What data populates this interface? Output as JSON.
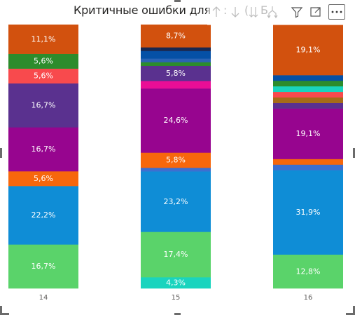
{
  "visual": {
    "title": "Критичные ошибки для",
    "title_fragments": [
      "↑",
      ":",
      "↓",
      "(",
      "↓↓",
      "Б",
      "⇊"
    ],
    "toolbar": {
      "sort_asc_icon": "arrow-up-icon",
      "sort_desc_icon": "arrow-down-icon",
      "drill_down_icon": "double-arrow-down-icon",
      "expand_icon": "fork-arrow-down-icon",
      "filter_icon": "funnel-icon",
      "focus_icon": "focus-mode-icon",
      "more_icon": "ellipsis-icon"
    }
  },
  "chart_data": {
    "type": "bar",
    "stacked": "100%",
    "title": "Критичные ошибки для",
    "categories": [
      "14",
      "15",
      "16"
    ],
    "ylim": [
      0,
      100
    ],
    "gridlines": false,
    "legend": "none",
    "columns": [
      {
        "category": "14",
        "segments": [
          {
            "value": 16.7,
            "color": "#5ad36a",
            "label": "16,7%"
          },
          {
            "value": 22.2,
            "color": "#0f8dd6",
            "label": "22,2%"
          },
          {
            "value": 5.6,
            "color": "#f7670c",
            "label": "5,6%"
          },
          {
            "value": 16.7,
            "color": "#97058f",
            "label": "16,7%"
          },
          {
            "value": 16.7,
            "color": "#5a318f",
            "label": "16,7%"
          },
          {
            "value": 5.6,
            "color": "#f84a4d",
            "label": "5,6%"
          },
          {
            "value": 5.6,
            "color": "#2c8c2c",
            "label": "5,6%"
          },
          {
            "value": 11.1,
            "color": "#d2510e",
            "label": "11,1%"
          }
        ]
      },
      {
        "category": "15",
        "segments": [
          {
            "value": 4.3,
            "color": "#19d4be",
            "label": "4,3%"
          },
          {
            "value": 17.4,
            "color": "#5ad36a",
            "label": "17,4%"
          },
          {
            "value": 23.2,
            "color": "#0f8dd6",
            "label": "23,2%"
          },
          {
            "value": 1.4,
            "color": "#3d6fd0",
            "label": ""
          },
          {
            "value": 5.8,
            "color": "#f7670c",
            "label": "5,8%"
          },
          {
            "value": 24.6,
            "color": "#97058f",
            "label": "24,6%"
          },
          {
            "value": 2.9,
            "color": "#ea0e96",
            "label": ""
          },
          {
            "value": 5.8,
            "color": "#5a318f",
            "label": "5,8%"
          },
          {
            "value": 1.4,
            "color": "#2c8c2c",
            "label": ""
          },
          {
            "value": 1.4,
            "color": "#2b63b4",
            "label": ""
          },
          {
            "value": 2.9,
            "color": "#0550a6",
            "label": ""
          },
          {
            "value": 1.4,
            "color": "#1a2850",
            "label": ""
          },
          {
            "value": 8.7,
            "color": "#d2510e",
            "label": "8,7%"
          }
        ]
      },
      {
        "category": "16",
        "segments": [
          {
            "value": 12.8,
            "color": "#5ad36a",
            "label": "12,8%"
          },
          {
            "value": 31.9,
            "color": "#0f8dd6",
            "label": "31,9%"
          },
          {
            "value": 2.1,
            "color": "#3d6fd0",
            "label": ""
          },
          {
            "value": 2.1,
            "color": "#f7670c",
            "label": ""
          },
          {
            "value": 19.1,
            "color": "#97058f",
            "label": "19,1%"
          },
          {
            "value": 2.1,
            "color": "#5a318f",
            "label": ""
          },
          {
            "value": 2.1,
            "color": "#a66c16",
            "label": ""
          },
          {
            "value": 2.1,
            "color": "#f84a4d",
            "label": ""
          },
          {
            "value": 2.1,
            "color": "#19d4be",
            "label": ""
          },
          {
            "value": 2.1,
            "color": "#2c8c2c",
            "label": ""
          },
          {
            "value": 2.1,
            "color": "#0550a6",
            "label": ""
          },
          {
            "value": 19.1,
            "color": "#d2510e",
            "label": "19,1%"
          }
        ]
      }
    ]
  }
}
